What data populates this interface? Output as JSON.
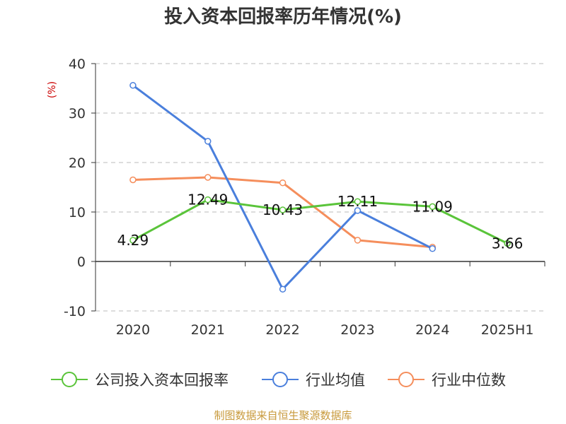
{
  "title": "投入资本回报率历年情况(%)",
  "footer": {
    "source": "制图数据来自恒生聚源数据库"
  },
  "colors": {
    "company": "#5ac43a",
    "industry_avg": "#4a7fdc",
    "industry_median": "#f58e5c",
    "unit_label": "#cc0000",
    "source": "#c89a3c"
  },
  "chart_data": {
    "type": "line",
    "title": "投入资本回报率历年情况(%)",
    "ylabel": "(%)",
    "xlabel": "",
    "categories": [
      "2020",
      "2021",
      "2022",
      "2023",
      "2024",
      "2025H1"
    ],
    "ylim": [
      -10,
      40
    ],
    "yticks": [
      -10,
      0,
      10,
      20,
      30,
      40
    ],
    "grid": true,
    "legend_position": "bottom",
    "series": [
      {
        "name": "公司投入资本回报率",
        "key": "company",
        "values": [
          4.29,
          12.49,
          10.43,
          12.11,
          11.09,
          3.66
        ],
        "data_labels": [
          "4.29",
          "12.49",
          "10.43",
          "12.11",
          "11.09",
          "3.66"
        ]
      },
      {
        "name": "行业均值",
        "key": "industry_avg",
        "values": [
          35.6,
          24.3,
          -5.6,
          10.3,
          2.6,
          null
        ]
      },
      {
        "name": "行业中位数",
        "key": "industry_median",
        "values": [
          16.5,
          17.0,
          15.9,
          4.3,
          2.9,
          null
        ]
      }
    ]
  }
}
